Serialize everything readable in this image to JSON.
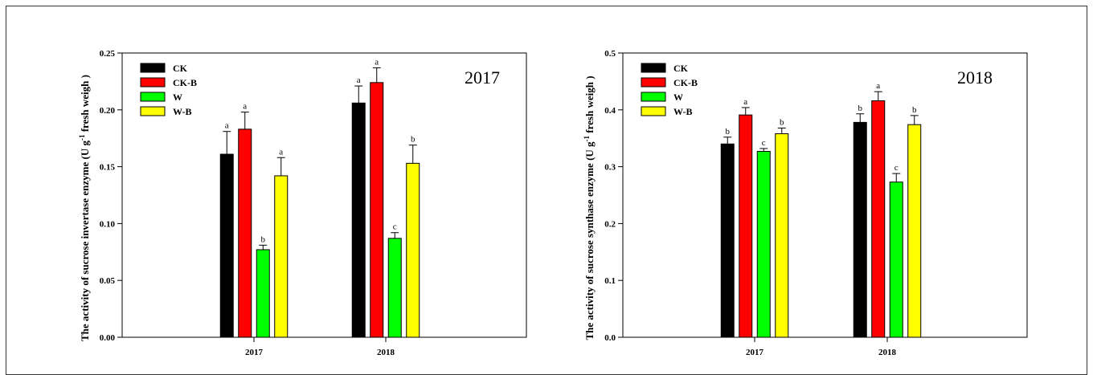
{
  "chart_data": [
    {
      "type": "bar",
      "title": "2017",
      "ylabel": "The activity of sucrose invertase enzyme (U g-1 fresh weigh )",
      "ylabel_parts": {
        "pre": "The activity of sucrose invertase enzyme (U g",
        "sup": "-1",
        "post": " fresh weigh  )"
      },
      "ylim": [
        0,
        0.25
      ],
      "yticks": [
        "0.00",
        "0.05",
        "0.10",
        "0.15",
        "0.20",
        "0.25"
      ],
      "categories": [
        "2017",
        "2018"
      ],
      "legend_position": "top-left",
      "series": [
        {
          "name": "CK",
          "color": "#000000",
          "values": [
            0.161,
            0.206
          ],
          "errors": [
            0.02,
            0.015
          ],
          "letters": [
            "a",
            "a"
          ]
        },
        {
          "name": "CK-B",
          "color": "#ff0000",
          "values": [
            0.183,
            0.224
          ],
          "errors": [
            0.015,
            0.013
          ],
          "letters": [
            "a",
            "a"
          ]
        },
        {
          "name": "W",
          "color": "#00ff00",
          "values": [
            0.077,
            0.087
          ],
          "errors": [
            0.004,
            0.005
          ],
          "letters": [
            "b",
            "c"
          ]
        },
        {
          "name": "W-B",
          "color": "#ffff00",
          "values": [
            0.142,
            0.153
          ],
          "errors": [
            0.016,
            0.016
          ],
          "letters": [
            "a",
            "b"
          ]
        }
      ]
    },
    {
      "type": "bar",
      "title": "2018",
      "ylabel": "The activity of sucrose synthase enzyme (U g-1 fresh weigh )",
      "ylabel_parts": {
        "pre": "The activity of sucrose synthase enzyme (U g",
        "sup": "-1",
        "post": " fresh weigh  )"
      },
      "ylim": [
        0,
        0.5
      ],
      "yticks": [
        "0.0",
        "0.1",
        "0.2",
        "0.3",
        "0.4",
        "0.5"
      ],
      "categories": [
        "2017",
        "2018"
      ],
      "legend_position": "top-left",
      "series": [
        {
          "name": "CK",
          "color": "#000000",
          "values": [
            0.34,
            0.378
          ],
          "errors": [
            0.012,
            0.015
          ],
          "letters": [
            "b",
            "b"
          ]
        },
        {
          "name": "CK-B",
          "color": "#ff0000",
          "values": [
            0.391,
            0.416
          ],
          "errors": [
            0.013,
            0.016
          ],
          "letters": [
            "a",
            "a"
          ]
        },
        {
          "name": "W",
          "color": "#00ff00",
          "values": [
            0.327,
            0.273
          ],
          "errors": [
            0.005,
            0.015
          ],
          "letters": [
            "c",
            "c"
          ]
        },
        {
          "name": "W-B",
          "color": "#ffff00",
          "values": [
            0.358,
            0.374
          ],
          "errors": [
            0.01,
            0.016
          ],
          "letters": [
            "b",
            "b"
          ]
        }
      ]
    }
  ]
}
